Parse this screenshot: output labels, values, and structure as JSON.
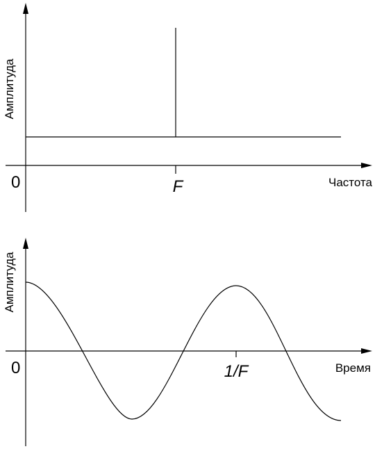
{
  "top_plot": {
    "ylabel": "Амплитуда",
    "xlabel": "Частота",
    "origin_label": "0",
    "tick_label": "F"
  },
  "bottom_plot": {
    "ylabel": "Амплитуда",
    "xlabel": "Время",
    "origin_label": "0",
    "tick_label": "1/F"
  }
}
